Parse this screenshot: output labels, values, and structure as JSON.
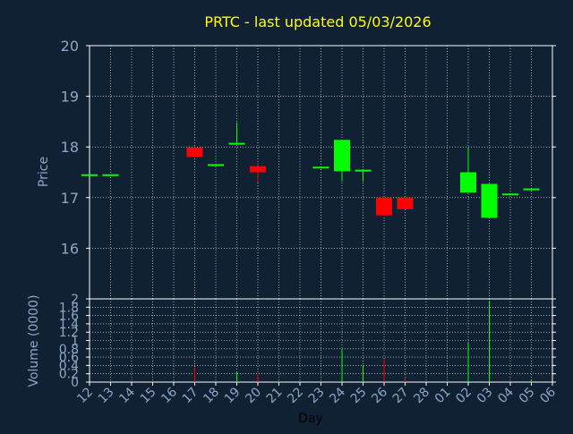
{
  "chart_data": {
    "type": "candlestick",
    "title": "PRTC - last updated 05/03/2026",
    "xlabel": "Day",
    "ylabel": "Price",
    "volume_label": "Volume (0000)",
    "categories": [
      "12",
      "13",
      "14",
      "15",
      "16",
      "17",
      "18",
      "19",
      "20",
      "21",
      "22",
      "23",
      "24",
      "25",
      "26",
      "27",
      "28",
      "01",
      "02",
      "03",
      "04",
      "05",
      "06"
    ],
    "price_ylim": [
      15.0,
      20.0
    ],
    "price_ticks": [
      "16",
      "17",
      "18",
      "19",
      "20"
    ],
    "volume_ylim": [
      0,
      2.0
    ],
    "volume_ticks": [
      "0",
      "0.2",
      "0.4",
      "0.6",
      "0.8",
      "1",
      "1.2",
      "1.4",
      "1.6",
      "1.8",
      "2"
    ],
    "grid": true,
    "colors": {
      "background": "#0f2133",
      "plot_background": "#0f2133",
      "up": "#00ff00",
      "down": "#ff0000",
      "axis": "#ffffff",
      "tick_labels": "#8fa6c4",
      "title": "#ffff00",
      "grid": "#ffffff"
    },
    "candles": [
      {
        "day": "12",
        "open": 17.46,
        "high": 17.46,
        "low": 17.46,
        "close": 17.46,
        "volume": 0.0
      },
      {
        "day": "13",
        "open": 17.46,
        "high": 17.46,
        "low": 17.46,
        "close": 17.46,
        "volume": 0.0
      },
      {
        "day": "17",
        "open": 17.99,
        "high": 17.99,
        "low": 17.8,
        "close": 17.8,
        "volume": 0.35
      },
      {
        "day": "18",
        "open": 17.66,
        "high": 17.66,
        "low": 17.66,
        "close": 17.66,
        "volume": 0.0
      },
      {
        "day": "19",
        "open": 18.08,
        "high": 18.48,
        "low": 18.08,
        "close": 18.08,
        "volume": 0.25
      },
      {
        "day": "20",
        "open": 17.62,
        "high": 17.68,
        "low": 17.3,
        "close": 17.5,
        "volume": 0.2
      },
      {
        "day": "23",
        "open": 17.61,
        "high": 17.61,
        "low": 17.61,
        "close": 17.61,
        "volume": 0.0
      },
      {
        "day": "24",
        "open": 17.52,
        "high": 18.14,
        "low": 17.32,
        "close": 18.14,
        "volume": 0.8
      },
      {
        "day": "25",
        "open": 17.52,
        "high": 17.55,
        "low": 17.32,
        "close": 17.55,
        "volume": 0.4
      },
      {
        "day": "26",
        "open": 17.0,
        "high": 17.0,
        "low": 16.65,
        "close": 16.65,
        "volume": 0.55
      },
      {
        "day": "27",
        "open": 17.0,
        "high": 17.0,
        "low": 16.77,
        "close": 16.77,
        "volume": 0.1
      },
      {
        "day": "02",
        "open": 17.1,
        "high": 17.99,
        "low": 17.1,
        "close": 17.5,
        "volume": 0.95
      },
      {
        "day": "03",
        "open": 16.6,
        "high": 17.27,
        "low": 16.6,
        "close": 17.27,
        "volume": 1.95
      },
      {
        "day": "04",
        "open": 17.08,
        "high": 17.08,
        "low": 17.08,
        "close": 17.08,
        "volume": 0.0
      },
      {
        "day": "05",
        "open": 17.18,
        "high": 17.18,
        "low": 17.18,
        "close": 17.18,
        "volume": 0.05
      }
    ]
  }
}
